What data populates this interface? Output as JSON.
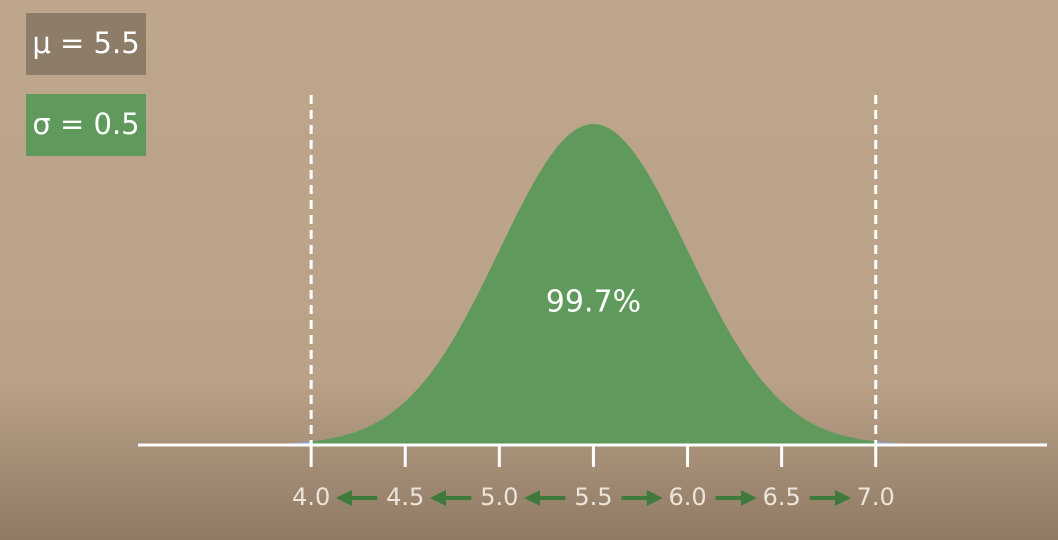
{
  "chart_data": {
    "type": "normal",
    "mu": {
      "value": 5.5,
      "label": "μ = 5.5"
    },
    "sigma": {
      "value": 0.5,
      "label": "σ = 0.5"
    },
    "area": {
      "value": 99.7,
      "label": "99.7%"
    },
    "bounds": [
      4,
      7
    ],
    "xlim": [
      3.08,
      7.91
    ],
    "xticks": [
      {
        "value": 4,
        "label": "4.0"
      },
      {
        "value": 4.5,
        "label": "4.5"
      },
      {
        "value": 5,
        "label": "5.0"
      },
      {
        "value": 5.5,
        "label": "5.5"
      },
      {
        "value": 6,
        "label": "6.0"
      },
      {
        "value": 6.5,
        "label": "6.5"
      },
      {
        "value": 7,
        "label": "7.0"
      }
    ],
    "color": "#5f9a5c",
    "tail_color": "#8aa6d6"
  }
}
